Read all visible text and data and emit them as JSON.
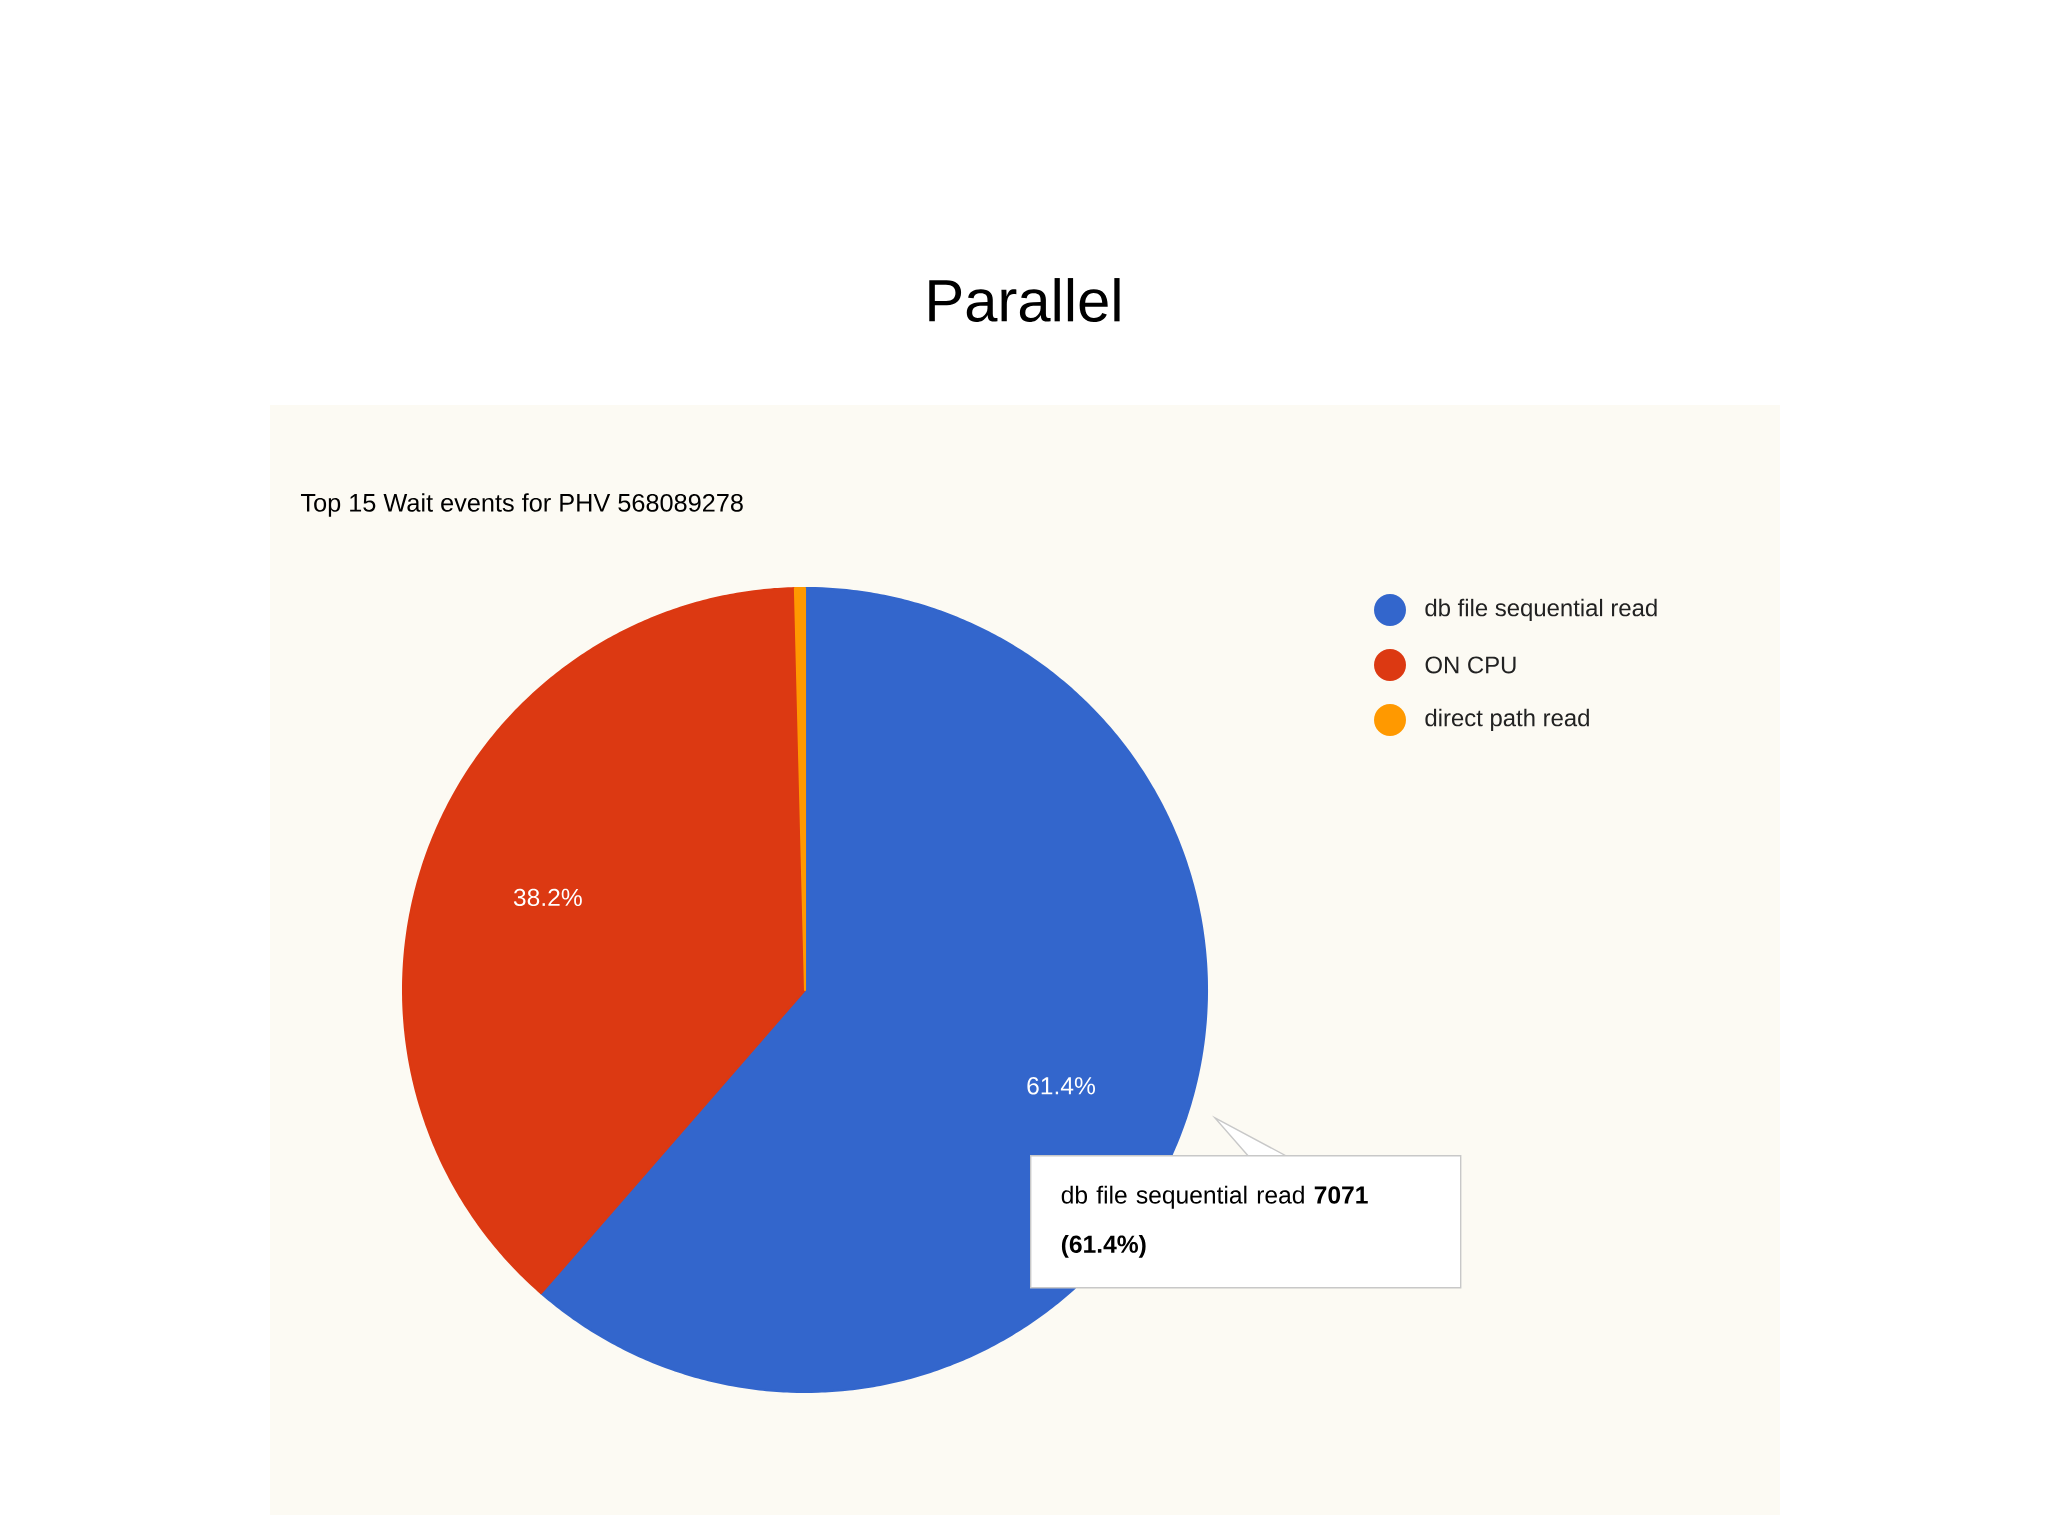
{
  "chart_data": {
    "type": "pie",
    "title": "Parallel",
    "subtitle": "Top 15 Wait events for PHV 568089278",
    "categories": [
      "db file sequential read",
      "ON CPU",
      "direct path read"
    ],
    "values": [
      61.4,
      38.2,
      0.4
    ],
    "colors": [
      "#3366cc",
      "#dc3912",
      "#ff9900"
    ],
    "value_labels": [
      "61.4%",
      "38.2%",
      null
    ],
    "legend": "top right",
    "annotations": [
      "db file sequential read **7071 (61.4%)**"
    ]
  }
}
